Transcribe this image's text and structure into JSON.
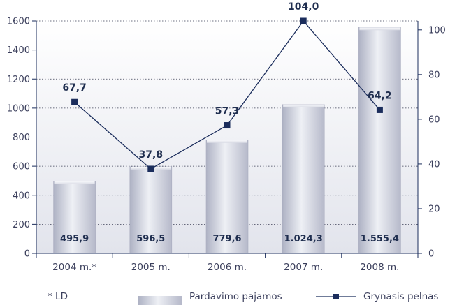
{
  "chart_data": {
    "type": "bar",
    "categories": [
      "2004 m.*",
      "2005 m.",
      "2006 m.",
      "2007 m.",
      "2008 m."
    ],
    "series": [
      {
        "name": "Pardavimo pajamos",
        "type": "bar",
        "axis": "left",
        "values": [
          495.9,
          596.5,
          779.6,
          1024.3,
          1555.4
        ],
        "labels": [
          "495,9",
          "596,5",
          "779,6",
          "1.024,3",
          "1.555,4"
        ],
        "color": "#c9ccd8"
      },
      {
        "name": "Grynasis pelnas",
        "type": "line",
        "axis": "right",
        "values": [
          67.7,
          37.8,
          57.3,
          104.0,
          64.2
        ],
        "labels": [
          "67,7",
          "37,8",
          "57,3",
          "104,0",
          "64,2"
        ],
        "color": "#1b2d5c"
      }
    ],
    "y_left": {
      "ylim": [
        0,
        1600
      ],
      "ticks": [
        0,
        200,
        400,
        600,
        800,
        1000,
        1200,
        1400,
        1600
      ]
    },
    "y_right": {
      "ylim": [
        0,
        104
      ],
      "ticks": [
        0,
        20,
        40,
        60,
        80,
        100
      ]
    },
    "grid": true,
    "legend": "bottom",
    "footnote": "* LD"
  }
}
